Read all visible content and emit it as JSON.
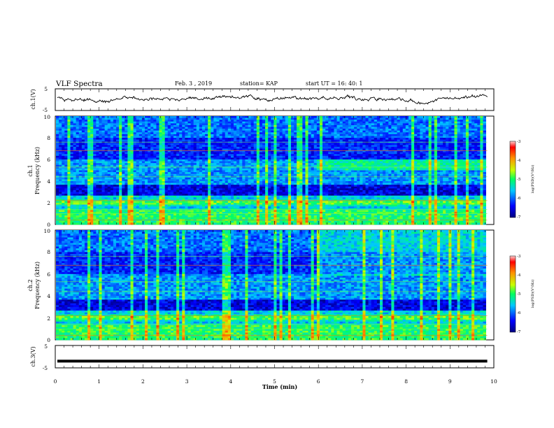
{
  "header": {
    "title": "VLF Spectra",
    "date": "Feb. 3 , 2019",
    "station": "station= KAP",
    "start": "start  UT =   16: 40: 1"
  },
  "chart_data": [
    {
      "type": "line",
      "panel": "ch1-waveform",
      "ylabel": "ch.1(V)",
      "ylim": [
        -5,
        5
      ],
      "yticks": [
        "5",
        "-5"
      ],
      "xlim": [
        0,
        10
      ],
      "x_end_min": 9.85,
      "baseline_v": 0.3,
      "amplitude_v": 2.0
    },
    {
      "type": "heatmap",
      "panel": "ch1-spectrogram",
      "ylabel_channel": "ch.1",
      "ylabel": "Frequency (kHz)",
      "ylim": [
        0,
        10
      ],
      "yticks": [
        "0",
        "2",
        "4",
        "6",
        "8",
        "10"
      ],
      "xlim": [
        0,
        10
      ],
      "x_end_min": 9.85,
      "colorbar": {
        "label": "log(PSD)(V²/Hz)",
        "range": [
          -7,
          -3
        ],
        "ticks": [
          "-3",
          "-4",
          "-5",
          "-6",
          "-7"
        ]
      }
    },
    {
      "type": "heatmap",
      "panel": "ch2-spectrogram",
      "ylabel_channel": "ch.2",
      "ylabel": "Frequency (kHz)",
      "ylim": [
        0,
        10
      ],
      "yticks": [
        "0",
        "2",
        "4",
        "6",
        "8",
        "10"
      ],
      "xlim": [
        0,
        10
      ],
      "x_end_min": 9.85,
      "colorbar": {
        "label": "log(PSD)(V²/Hz)",
        "range": [
          -7,
          -3
        ],
        "ticks": [
          "-3",
          "-4",
          "-5",
          "-6",
          "-7"
        ]
      }
    },
    {
      "type": "line",
      "panel": "ch3-waveform",
      "ylabel": "ch.3(V)",
      "ylim": [
        -5,
        5
      ],
      "yticks": [
        "5",
        "-5"
      ],
      "xlim": [
        0,
        10
      ],
      "x_end_min": 9.85,
      "level_v": -2
    }
  ],
  "xaxis": {
    "label": "Time  (min)",
    "ticks": [
      "0",
      "1",
      "2",
      "3",
      "4",
      "5",
      "6",
      "7",
      "8",
      "9",
      "10"
    ]
  },
  "colors": {
    "spectrum_low": "#000a8a",
    "spectrum_mid": "#00e9ff",
    "spectrum_high": "#ff0000"
  }
}
